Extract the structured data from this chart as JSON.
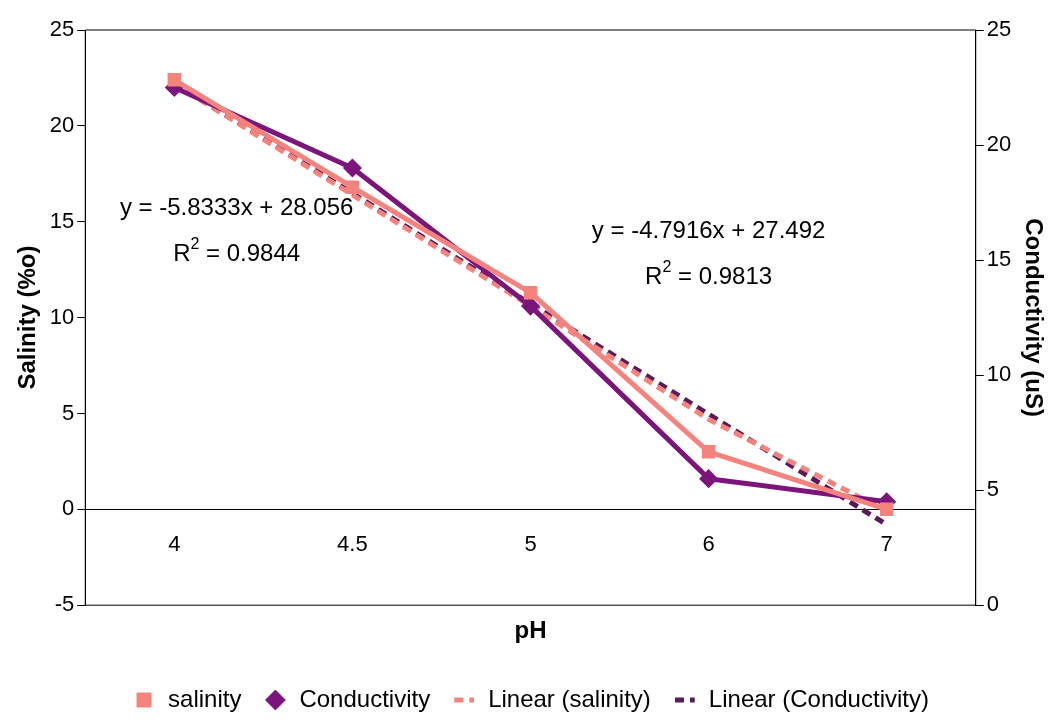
{
  "chart_data": {
    "type": "line",
    "xlabel": "pH",
    "ylabel": "Salinity (%o)",
    "y2label": "Conductivity (uS)",
    "categories": [
      "4",
      "4.5",
      "5",
      "6",
      "7"
    ],
    "series": [
      {
        "name": "salinity",
        "color": "#f4837d",
        "values": [
          22.4,
          16.8,
          11.3,
          3,
          0
        ],
        "marker": "square",
        "line_style": "solid"
      },
      {
        "name": "Conductivity",
        "color": "#7b157b",
        "values": [
          22.5,
          19,
          13,
          5.5,
          4.5
        ],
        "marker": "diamond",
        "line_style": "solid",
        "axis": "y2"
      },
      {
        "name": "Linear (salinity)",
        "color": "#f4837d",
        "values": [
          22.2,
          16.4,
          10.6,
          4.7,
          -0.1
        ],
        "marker": "none",
        "line_style": "dashed"
      },
      {
        "name": "Linear (Conductivity)",
        "color": "#5a1a5a",
        "values": [
          22.7,
          17.9,
          13.1,
          8.3,
          3.5
        ],
        "marker": "none",
        "line_style": "dashed",
        "axis": "y2"
      }
    ],
    "ylim": [
      -5,
      25
    ],
    "yticks": [
      -5,
      0,
      5,
      10,
      15,
      20,
      25
    ],
    "y2lim": [
      0,
      25
    ],
    "y2ticks": [
      0,
      5,
      10,
      15,
      20,
      25
    ],
    "grid": false,
    "legend": "bottom",
    "annotations": [
      "y = -5.8333x + 28.056",
      "R$^{2}$ = 0.9844",
      "y = -4.7916x + 27.492",
      "R$^{2}$ = 0.9813"
    ]
  }
}
